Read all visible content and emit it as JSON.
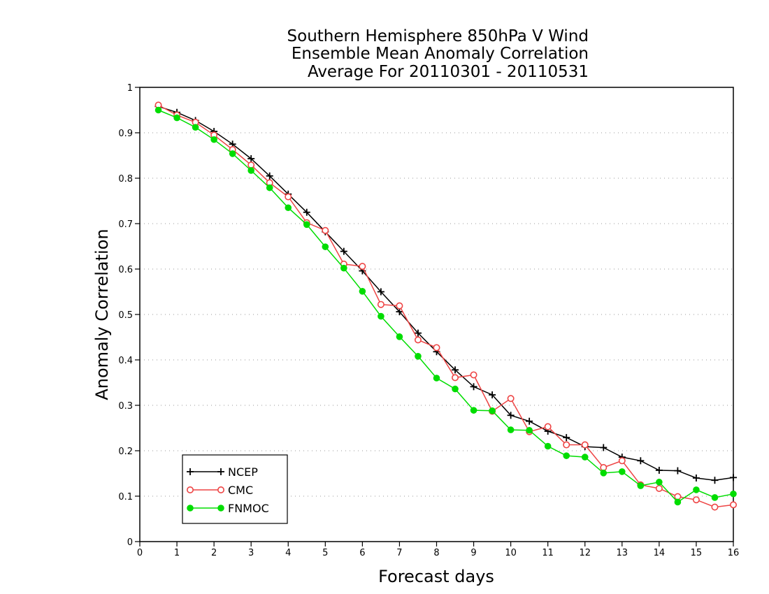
{
  "chart_data": {
    "type": "line",
    "title_lines": [
      "Southern Hemisphere 850hPa V Wind",
      "Ensemble Mean Anomaly Correlation",
      "Average For 20110301 - 20110531"
    ],
    "xlabel": "Forecast days",
    "ylabel": "Anomaly Correlation",
    "xlim": [
      0,
      16
    ],
    "ylim": [
      0,
      1
    ],
    "x_ticks": [
      "0",
      "1",
      "2",
      "3",
      "4",
      "5",
      "6",
      "7",
      "8",
      "9",
      "10",
      "11",
      "12",
      "13",
      "14",
      "15",
      "16"
    ],
    "y_ticks": [
      "0",
      "0.1",
      "0.2",
      "0.3",
      "0.4",
      "0.5",
      "0.6",
      "0.7",
      "0.8",
      "0.9",
      "1"
    ],
    "grid": "horizontal dotted",
    "legend_position": "bottom-left",
    "x": [
      0.5,
      1,
      1.5,
      2,
      2.5,
      3,
      3.5,
      4,
      4.5,
      5,
      5.5,
      6,
      6.5,
      7,
      7.5,
      8,
      8.5,
      9,
      9.5,
      10,
      10.5,
      11,
      11.5,
      12,
      12.5,
      13,
      13.5,
      14,
      14.5,
      15,
      15.5,
      16
    ],
    "series": [
      {
        "name": "NCEP",
        "color": "#000000",
        "marker": "plus",
        "values": [
          0.958,
          0.945,
          0.927,
          0.903,
          0.875,
          0.843,
          0.805,
          0.765,
          0.725,
          0.682,
          0.639,
          0.596,
          0.55,
          0.506,
          0.459,
          0.418,
          0.378,
          0.341,
          0.323,
          0.278,
          0.265,
          0.243,
          0.229,
          0.209,
          0.207,
          0.186,
          0.178,
          0.157,
          0.156,
          0.14,
          0.135,
          0.141
        ]
      },
      {
        "name": "CMC",
        "color": "#ee4444",
        "marker": "open-circle",
        "values": [
          0.961,
          0.939,
          0.923,
          0.895,
          0.863,
          0.829,
          0.79,
          0.759,
          0.702,
          0.685,
          0.611,
          0.606,
          0.522,
          0.519,
          0.444,
          0.427,
          0.361,
          0.367,
          0.287,
          0.315,
          0.242,
          0.253,
          0.213,
          0.213,
          0.163,
          0.178,
          0.125,
          0.117,
          0.099,
          0.092,
          0.076,
          0.081
        ]
      },
      {
        "name": "FNMOC",
        "color": "#00dd00",
        "marker": "filled-circle",
        "values": [
          0.95,
          0.933,
          0.912,
          0.885,
          0.854,
          0.817,
          0.779,
          0.735,
          0.698,
          0.649,
          0.602,
          0.551,
          0.496,
          0.451,
          0.408,
          0.36,
          0.336,
          0.289,
          0.288,
          0.246,
          0.245,
          0.21,
          0.189,
          0.186,
          0.151,
          0.154,
          0.123,
          0.131,
          0.087,
          0.114,
          0.097,
          0.105
        ]
      }
    ]
  }
}
